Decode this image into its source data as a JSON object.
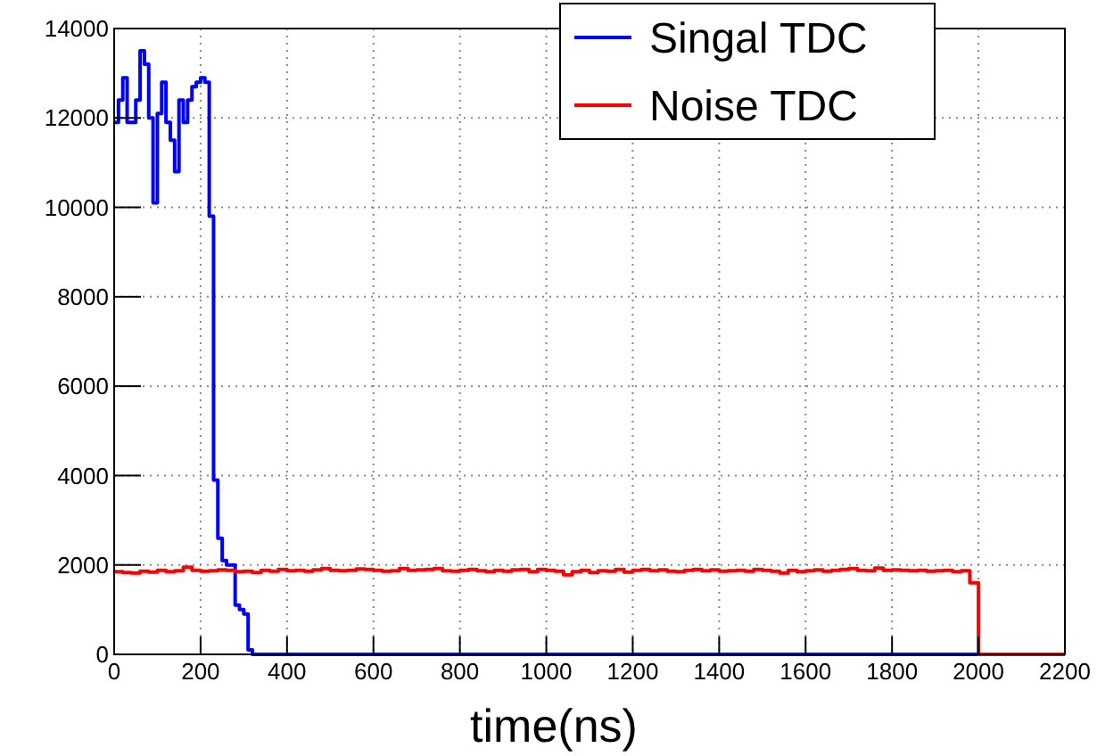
{
  "chart_data": {
    "type": "step",
    "xlabel": "time(ns)",
    "xlim": [
      0,
      2200
    ],
    "xticks": [
      0,
      200,
      400,
      600,
      800,
      1000,
      1200,
      1400,
      1600,
      1800,
      2000,
      2200
    ],
    "ylim": [
      0,
      14000
    ],
    "yticks": [
      0,
      2000,
      4000,
      6000,
      8000,
      10000,
      12000,
      14000
    ],
    "grid": true,
    "legend": "top right",
    "series": [
      {
        "name": "Singal TDC",
        "color": "#0000ff",
        "x": [
          0,
          10,
          20,
          30,
          40,
          50,
          60,
          70,
          80,
          90,
          100,
          110,
          120,
          130,
          140,
          150,
          160,
          170,
          180,
          190,
          200,
          210,
          220,
          230,
          240,
          250,
          260,
          270,
          280,
          290,
          300,
          310,
          320,
          2200
        ],
        "values": [
          11900,
          12400,
          12900,
          11900,
          11900,
          12400,
          13500,
          13200,
          12000,
          10100,
          12100,
          12800,
          11900,
          11500,
          10800,
          12400,
          11900,
          12400,
          12700,
          12800,
          12900,
          12800,
          9800,
          3900,
          2600,
          2100,
          2000,
          2000,
          1100,
          1000,
          900,
          100,
          0,
          0
        ]
      },
      {
        "name": "Noise TDC",
        "color": "#ff0000",
        "x": [
          0,
          20,
          40,
          60,
          80,
          100,
          120,
          140,
          160,
          180,
          200,
          220,
          240,
          260,
          280,
          300,
          320,
          340,
          360,
          380,
          400,
          420,
          440,
          460,
          480,
          500,
          520,
          540,
          560,
          580,
          600,
          620,
          640,
          660,
          680,
          700,
          720,
          740,
          760,
          780,
          800,
          820,
          840,
          860,
          880,
          900,
          920,
          940,
          960,
          980,
          1000,
          1020,
          1040,
          1060,
          1080,
          1100,
          1120,
          1140,
          1160,
          1180,
          1200,
          1220,
          1240,
          1260,
          1280,
          1300,
          1320,
          1340,
          1360,
          1380,
          1400,
          1420,
          1440,
          1460,
          1480,
          1500,
          1520,
          1540,
          1560,
          1580,
          1600,
          1620,
          1640,
          1660,
          1680,
          1700,
          1720,
          1740,
          1760,
          1780,
          1800,
          1820,
          1840,
          1860,
          1880,
          1900,
          1920,
          1940,
          1960,
          1980,
          2000,
          2200
        ],
        "values": [
          1850,
          1830,
          1820,
          1860,
          1840,
          1880,
          1850,
          1870,
          1950,
          1880,
          1860,
          1870,
          1890,
          1880,
          1850,
          1860,
          1830,
          1880,
          1860,
          1900,
          1870,
          1880,
          1860,
          1890,
          1920,
          1880,
          1870,
          1880,
          1910,
          1900,
          1880,
          1860,
          1870,
          1920,
          1880,
          1890,
          1900,
          1920,
          1870,
          1860,
          1880,
          1900,
          1870,
          1850,
          1880,
          1860,
          1890,
          1900,
          1850,
          1900,
          1880,
          1860,
          1780,
          1850,
          1880,
          1830,
          1870,
          1860,
          1900,
          1840,
          1880,
          1900,
          1870,
          1890,
          1860,
          1850,
          1880,
          1900,
          1870,
          1890,
          1860,
          1870,
          1880,
          1860,
          1900,
          1880,
          1860,
          1820,
          1880,
          1850,
          1870,
          1890,
          1860,
          1880,
          1900,
          1920,
          1880,
          1870,
          1930,
          1880,
          1890,
          1880,
          1870,
          1880,
          1860,
          1870,
          1880,
          1850,
          1870,
          1600,
          0,
          0
        ]
      }
    ]
  }
}
